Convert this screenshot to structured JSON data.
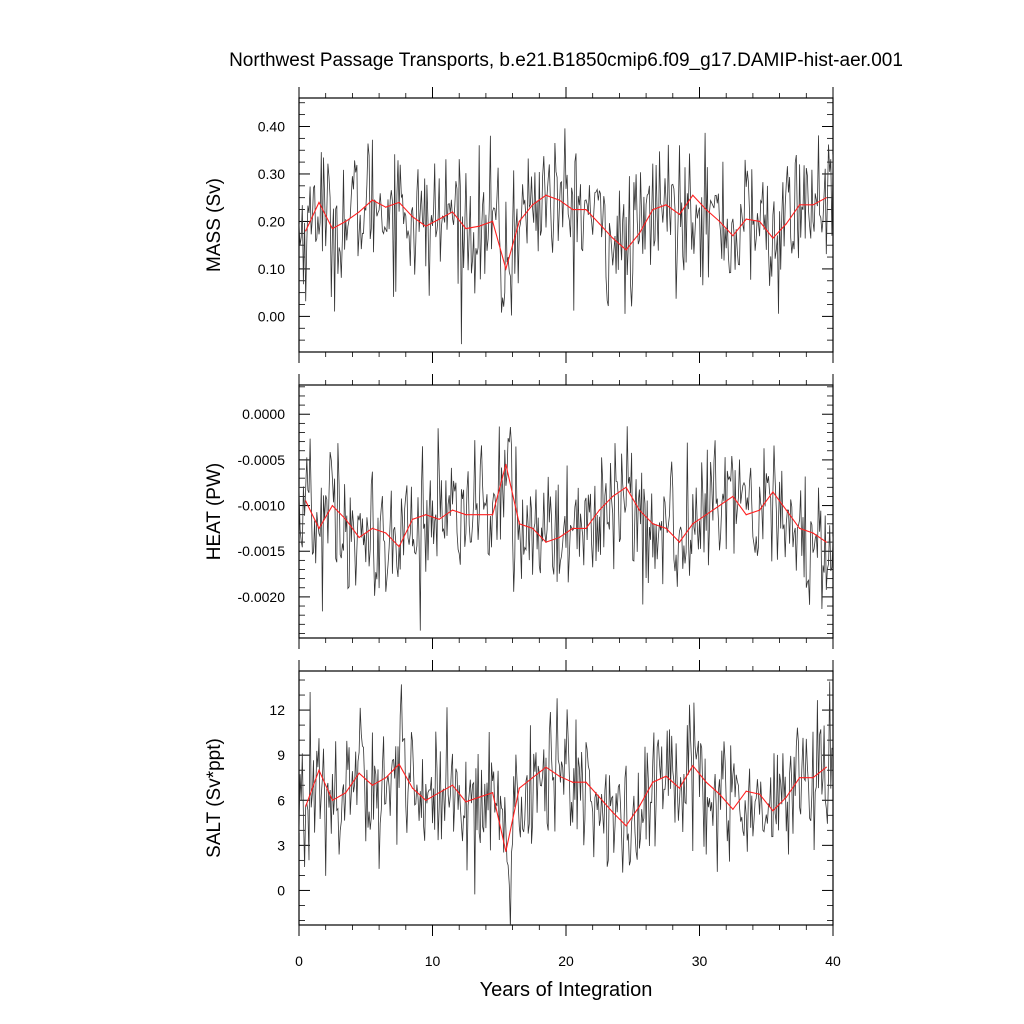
{
  "chart_data": {
    "type": "line",
    "title": "Northwest Passage Transports, b.e21.B1850cmip6.f09_g17.DAMIP-hist-aer.001",
    "xlabel": "Years of Integration",
    "xlim": [
      0,
      40
    ],
    "xticks": [
      0,
      10,
      20,
      30,
      40
    ],
    "xticklabels": [
      "0",
      "10",
      "20",
      "30",
      "40"
    ],
    "colors": {
      "monthly": "#333333",
      "annual": "#ff2020"
    },
    "panels": [
      {
        "ylabel": "MASS (Sv)",
        "ylim": [
          -0.075,
          0.46
        ],
        "yticks": [
          0.0,
          0.1,
          0.2,
          0.3,
          0.4
        ],
        "yticklabels": [
          "0.00",
          "0.10",
          "0.20",
          "0.30",
          "0.40"
        ],
        "yminor": 0.025,
        "series": [
          {
            "x": [
              0.5,
              1.5,
              2.5,
              3.5,
              4.5,
              5.5,
              6.5,
              7.5,
              8.5,
              9.5,
              10.5,
              11.5,
              12.5,
              13.5,
              14.5,
              15.5,
              16.5,
              17.5,
              18.5,
              19.5,
              20.5,
              21.5,
              22.5,
              23.5,
              24.5,
              25.5,
              26.5,
              27.5,
              28.5,
              29.5,
              30.5,
              31.5,
              32.5,
              33.5,
              34.5,
              35.5,
              36.5,
              37.5,
              38.5,
              39.5
            ],
            "values": [
              0.18,
              0.24,
              0.185,
              0.2,
              0.22,
              0.245,
              0.23,
              0.24,
              0.21,
              0.19,
              0.205,
              0.22,
              0.185,
              0.19,
              0.2,
              0.1,
              0.2,
              0.235,
              0.255,
              0.245,
              0.225,
              0.225,
              0.195,
              0.165,
              0.14,
              0.175,
              0.225,
              0.235,
              0.215,
              0.255,
              0.225,
              0.2,
              0.17,
              0.205,
              0.2,
              0.165,
              0.195,
              0.235,
              0.235,
              0.25
            ]
          }
        ]
      },
      {
        "ylabel": "HEAT (PW)",
        "ylim": [
          -0.00245,
          0.00032
        ],
        "yticks": [
          -0.002,
          -0.0015,
          -0.001,
          -0.0005,
          0.0
        ],
        "yticklabels": [
          "-0.0020",
          "-0.0015",
          "-0.0010",
          "-0.0005",
          "0.0000"
        ],
        "yminor": 0.0001,
        "series": [
          {
            "x": [
              0.5,
              1.5,
              2.5,
              3.5,
              4.5,
              5.5,
              6.5,
              7.5,
              8.5,
              9.5,
              10.5,
              11.5,
              12.5,
              13.5,
              14.5,
              15.5,
              16.5,
              17.5,
              18.5,
              19.5,
              20.5,
              21.5,
              22.5,
              23.5,
              24.5,
              25.5,
              26.5,
              27.5,
              28.5,
              29.5,
              30.5,
              31.5,
              32.5,
              33.5,
              34.5,
              35.5,
              36.5,
              37.5,
              38.5,
              39.5
            ],
            "values": [
              -0.00095,
              -0.00125,
              -0.001,
              -0.00115,
              -0.00135,
              -0.00125,
              -0.0013,
              -0.00145,
              -0.00115,
              -0.0011,
              -0.00115,
              -0.00105,
              -0.0011,
              -0.0011,
              -0.0011,
              -0.00055,
              -0.0012,
              -0.00125,
              -0.0014,
              -0.00135,
              -0.00125,
              -0.00125,
              -0.00105,
              -0.0009,
              -0.0008,
              -0.00105,
              -0.0012,
              -0.00125,
              -0.0014,
              -0.0012,
              -0.0011,
              -0.001,
              -0.0009,
              -0.0011,
              -0.00105,
              -0.00085,
              -0.00105,
              -0.00125,
              -0.0013,
              -0.0014
            ]
          }
        ]
      },
      {
        "ylabel": "SALT (Sv*ppt)",
        "ylim": [
          -2.3,
          14.6
        ],
        "yticks": [
          0,
          3,
          6,
          9,
          12
        ],
        "yticklabels": [
          "0",
          "3",
          "6",
          "9",
          "12"
        ],
        "yminor": 1,
        "series": [
          {
            "x": [
              0.5,
              1.5,
              2.5,
              3.5,
              4.5,
              5.5,
              6.5,
              7.5,
              8.5,
              9.5,
              10.5,
              11.5,
              12.5,
              13.5,
              14.5,
              15.5,
              16.5,
              17.5,
              18.5,
              19.5,
              20.5,
              21.5,
              22.5,
              23.5,
              24.5,
              25.5,
              26.5,
              27.5,
              28.5,
              29.5,
              30.5,
              31.5,
              32.5,
              33.5,
              34.5,
              35.5,
              36.5,
              37.5,
              38.5,
              39.5
            ],
            "values": [
              5.6,
              8.0,
              6.0,
              6.5,
              7.8,
              7.0,
              7.5,
              8.4,
              6.8,
              6.0,
              6.5,
              7.0,
              5.9,
              6.2,
              6.5,
              2.6,
              6.8,
              7.5,
              8.2,
              7.6,
              7.2,
              7.2,
              6.2,
              5.2,
              4.3,
              5.6,
              7.2,
              7.6,
              6.8,
              8.3,
              7.2,
              6.4,
              5.4,
              6.6,
              6.4,
              5.3,
              6.2,
              7.5,
              7.5,
              8.2
            ]
          }
        ]
      }
    ]
  }
}
